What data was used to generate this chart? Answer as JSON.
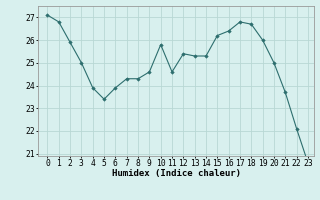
{
  "x": [
    0,
    1,
    2,
    3,
    4,
    5,
    6,
    7,
    8,
    9,
    10,
    11,
    12,
    13,
    14,
    15,
    16,
    17,
    18,
    19,
    20,
    21,
    22,
    23
  ],
  "y": [
    27.1,
    26.8,
    25.9,
    25.0,
    23.9,
    23.4,
    23.9,
    24.3,
    24.3,
    24.6,
    25.8,
    24.6,
    25.4,
    25.3,
    25.3,
    26.2,
    26.4,
    26.8,
    26.7,
    26.0,
    25.0,
    23.7,
    22.1,
    20.6
  ],
  "line_color": "#2d6e6e",
  "marker": "D",
  "marker_size": 1.8,
  "bg_color": "#d8f0ee",
  "grid_color": "#b8d8d4",
  "xlabel": "Humidex (Indice chaleur)",
  "ylim": [
    20.9,
    27.5
  ],
  "yticks": [
    21,
    22,
    23,
    24,
    25,
    26,
    27
  ],
  "xticks": [
    0,
    1,
    2,
    3,
    4,
    5,
    6,
    7,
    8,
    9,
    10,
    11,
    12,
    13,
    14,
    15,
    16,
    17,
    18,
    19,
    20,
    21,
    22,
    23
  ],
  "label_fontsize": 6.5,
  "tick_fontsize": 5.8
}
